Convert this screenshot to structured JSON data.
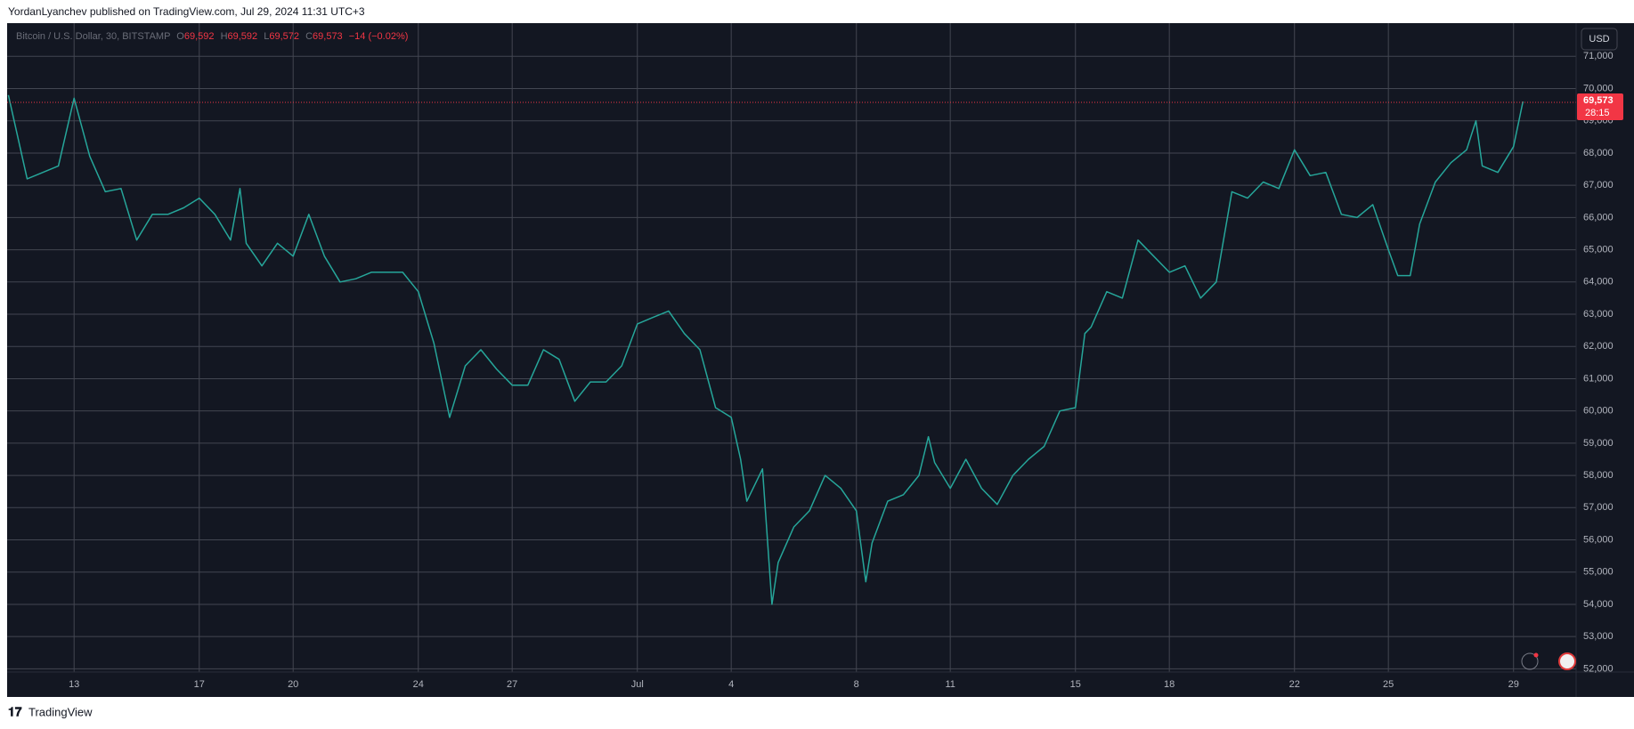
{
  "header": {
    "text": "YordanLyanchev published on TradingView.com, Jul 29, 2024 11:31 UTC+3"
  },
  "footer": {
    "brand": "TradingView"
  },
  "chart_data": {
    "type": "line",
    "legend": {
      "symbol": "Bitcoin / U.S. Dollar, 30, BITSTAMP",
      "o_key": "O",
      "o": "69,592",
      "h_key": "H",
      "h": "69,592",
      "l_key": "L",
      "l": "69,572",
      "c_key": "C",
      "c": "69,573",
      "change": "−14 (−0.02%)"
    },
    "currency": "USD",
    "current_price": {
      "value": 69573,
      "label": "69,573"
    },
    "countdown": "28:15",
    "grid": true,
    "series": [
      {
        "name": "Bitcoin / U.S. Dollar",
        "color": "#26a69a",
        "x": [
          10.9,
          11.5,
          12,
          12.5,
          13,
          13.5,
          14,
          14.5,
          15,
          15.5,
          16,
          16.5,
          17,
          17.5,
          18,
          18.3,
          18.5,
          19,
          19.5,
          20,
          20.5,
          21,
          21.5,
          22,
          22.5,
          23,
          23.5,
          24,
          24.5,
          25,
          25.5,
          26,
          26.5,
          27,
          27.5,
          28,
          28.5,
          29,
          29.5,
          30,
          30.5,
          31,
          31.5,
          32,
          32.5,
          33,
          33.5,
          34,
          34.3,
          34.5,
          35,
          35.3,
          35.5,
          36,
          36.5,
          37,
          37.5,
          38,
          38.3,
          38.5,
          39,
          39.5,
          40,
          40.3,
          40.5,
          41,
          41.5,
          42,
          42.5,
          43,
          43.5,
          44,
          44.5,
          45,
          45.3,
          45.5,
          46,
          46.5,
          47,
          47.5,
          48,
          48.5,
          49,
          49.5,
          50,
          50.5,
          51,
          51.5,
          52,
          52.5,
          53,
          53.5,
          54,
          54.5,
          55,
          55.3,
          55.7,
          56,
          56.5,
          57,
          57.5,
          57.8,
          58,
          58.5,
          59,
          59.3
        ],
        "values": [
          69800,
          67200,
          67400,
          67600,
          69700,
          67900,
          66800,
          66900,
          65300,
          66100,
          66100,
          66300,
          66600,
          66100,
          65300,
          66900,
          65200,
          64500,
          65200,
          64800,
          66100,
          64800,
          64000,
          64100,
          64300,
          64300,
          64300,
          63700,
          62100,
          59800,
          61400,
          61900,
          61300,
          60800,
          60800,
          61900,
          61600,
          60300,
          60900,
          60900,
          61400,
          62700,
          62900,
          63100,
          62400,
          61900,
          60100,
          59800,
          58500,
          57200,
          58200,
          54000,
          55300,
          56400,
          56900,
          58000,
          57600,
          56900,
          54700,
          55900,
          57200,
          57400,
          58000,
          59200,
          58400,
          57600,
          58500,
          57600,
          57100,
          58000,
          58500,
          58900,
          60000,
          60100,
          62400,
          62600,
          63700,
          63500,
          65300,
          64800,
          64300,
          64500,
          63500,
          64000,
          66800,
          66600,
          67100,
          66900,
          68100,
          67300,
          67400,
          66100,
          66000,
          66400,
          65000,
          64200,
          64200,
          65800,
          67100,
          67700,
          68100,
          69000,
          67600,
          67400,
          68200,
          69600
        ]
      }
    ],
    "xlim": [
      10.86,
      61.0
    ],
    "xticks": [
      {
        "value": 13,
        "label": "13"
      },
      {
        "value": 17,
        "label": "17"
      },
      {
        "value": 20,
        "label": "20"
      },
      {
        "value": 24,
        "label": "24"
      },
      {
        "value": 27,
        "label": "27"
      },
      {
        "value": 31,
        "label": "Jul"
      },
      {
        "value": 34,
        "label": "4"
      },
      {
        "value": 38,
        "label": "8"
      },
      {
        "value": 41,
        "label": "11"
      },
      {
        "value": 45,
        "label": "15"
      },
      {
        "value": 48,
        "label": "18"
      },
      {
        "value": 52,
        "label": "22"
      },
      {
        "value": 55,
        "label": "25"
      },
      {
        "value": 59,
        "label": "29"
      }
    ],
    "ylim": [
      51900,
      72030
    ],
    "yticks": [
      {
        "value": 52000,
        "label": "52,000"
      },
      {
        "value": 53000,
        "label": "53,000"
      },
      {
        "value": 54000,
        "label": "54,000"
      },
      {
        "value": 55000,
        "label": "55,000"
      },
      {
        "value": 56000,
        "label": "56,000"
      },
      {
        "value": 57000,
        "label": "57,000"
      },
      {
        "value": 58000,
        "label": "58,000"
      },
      {
        "value": 59000,
        "label": "59,000"
      },
      {
        "value": 60000,
        "label": "60,000"
      },
      {
        "value": 61000,
        "label": "61,000"
      },
      {
        "value": 62000,
        "label": "62,000"
      },
      {
        "value": 63000,
        "label": "63,000"
      },
      {
        "value": 64000,
        "label": "64,000"
      },
      {
        "value": 65000,
        "label": "65,000"
      },
      {
        "value": 66000,
        "label": "66,000"
      },
      {
        "value": 67000,
        "label": "67,000"
      },
      {
        "value": 68000,
        "label": "68,000"
      },
      {
        "value": 69000,
        "label": "69,000"
      },
      {
        "value": 70000,
        "label": "70,000"
      },
      {
        "value": 71000,
        "label": "71,000"
      }
    ]
  }
}
